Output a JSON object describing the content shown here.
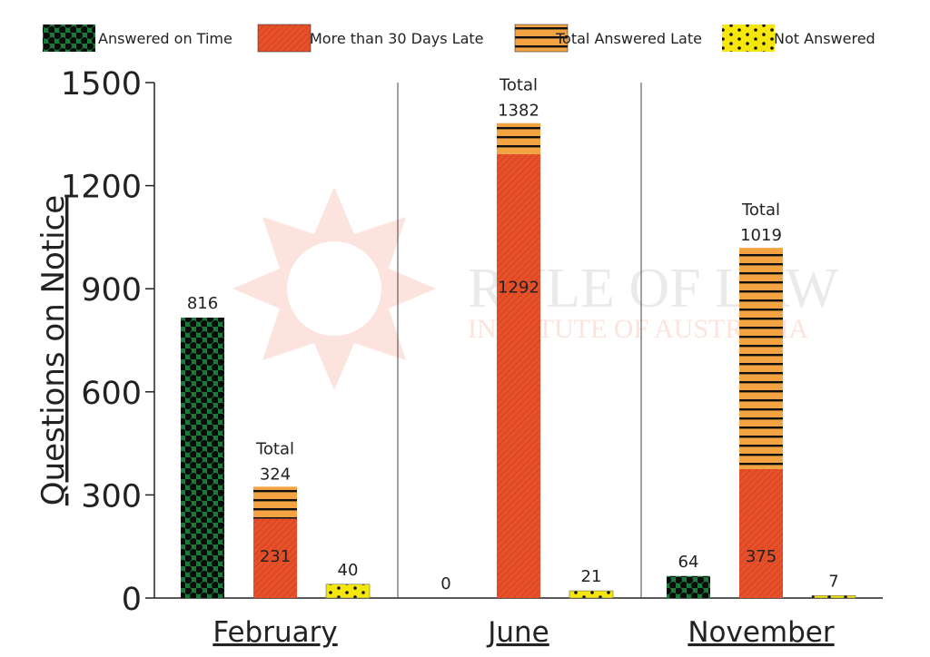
{
  "chart_data": {
    "type": "bar",
    "ylabel": "Questions on Notice",
    "ylim": [
      0,
      1500
    ],
    "yticks": [
      0,
      300,
      600,
      900,
      1200,
      1500
    ],
    "grid": false,
    "legend_position": "top",
    "categories": [
      "February",
      "June",
      "November"
    ],
    "series": [
      {
        "name": "Answered on Time",
        "key": "ontime",
        "color": "#1a7a3a",
        "pattern": "dots-dark"
      },
      {
        "name": "More than 30 Days Late",
        "key": "late30",
        "color": "#e8502a",
        "pattern": "hatch"
      },
      {
        "name": "Total Answered Late",
        "key": "totallate",
        "color": "#f4a342",
        "pattern": "h-stripes"
      },
      {
        "name": "Not Answered",
        "key": "notanswered",
        "color": "#f5e60c",
        "pattern": "dots-sparse"
      }
    ],
    "groups": [
      {
        "category": "February",
        "ontime": 816,
        "late30": 231,
        "totallate": 324,
        "notanswered": 40,
        "labels": {
          "ontime": "816",
          "late30": "231",
          "total_word": "Total",
          "total": "324",
          "notanswered": "40"
        }
      },
      {
        "category": "June",
        "ontime": 0,
        "late30": 1292,
        "totallate": 1382,
        "notanswered": 21,
        "labels": {
          "ontime": "0",
          "late30": "1292",
          "total_word": "Total",
          "total": "1382",
          "notanswered": "21"
        }
      },
      {
        "category": "November",
        "ontime": 64,
        "late30": 375,
        "totallate": 1019,
        "notanswered": 7,
        "labels": {
          "ontime": "64",
          "late30": "375",
          "total_word": "Total",
          "total": "1019",
          "notanswered": "7"
        }
      }
    ]
  },
  "watermark": {
    "line1": "RULE OF LAW",
    "line2": "INSTITUTE OF AUSTRALIA"
  }
}
